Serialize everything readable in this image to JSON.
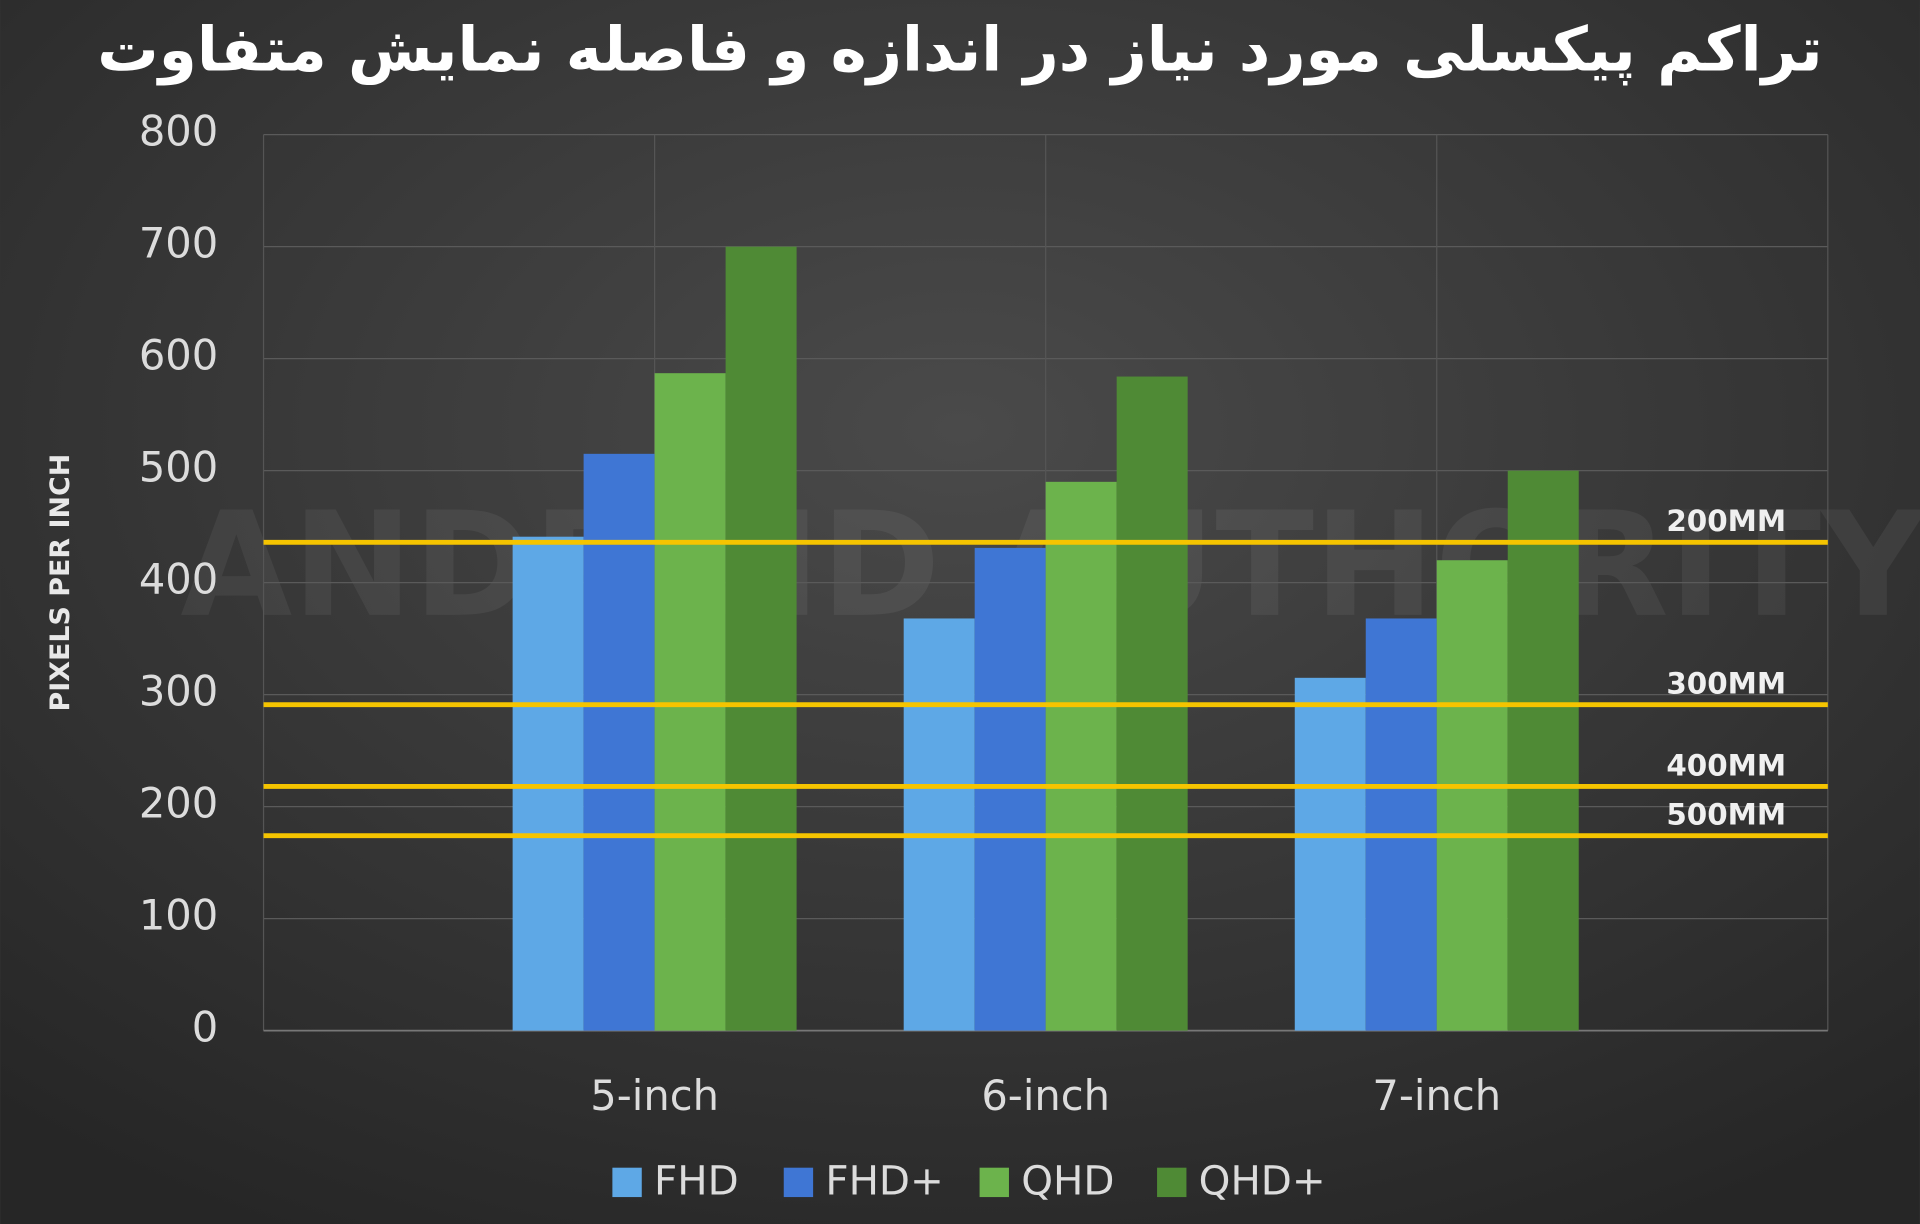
{
  "chart_data": {
    "type": "bar",
    "title": "تراکم پیکسلی مورد نیاز در اندازه و فاصله نمایش متفاوت",
    "watermark": "ANDROID AUTHORITY",
    "y_label": "PIXELS PER INCH",
    "categories": [
      null,
      "5-inch",
      "6-inch",
      "7-inch"
    ],
    "series": [
      {
        "name": "FHD",
        "color": "#5ea8e6",
        "values": [
          null,
          441,
          368,
          315
        ]
      },
      {
        "name": "FHD+",
        "color": "#3f76d4",
        "values": [
          null,
          515,
          431,
          368
        ]
      },
      {
        "name": "QHD",
        "color": "#6cb34c",
        "values": [
          null,
          587,
          490,
          420
        ]
      },
      {
        "name": "QHD+",
        "color": "#4f8a35",
        "values": [
          null,
          700,
          584,
          500
        ]
      }
    ],
    "reference_lines": [
      {
        "label": "200MM",
        "value": 436
      },
      {
        "label": "300MM",
        "value": 291
      },
      {
        "label": "400MM",
        "value": 218
      },
      {
        "label": "500MM",
        "value": 174
      }
    ],
    "reference_color": "#f5c400",
    "ylim": [
      0,
      800
    ],
    "yticks": [
      0,
      100,
      200,
      300,
      400,
      500,
      600,
      700,
      800
    ],
    "grid": true
  }
}
